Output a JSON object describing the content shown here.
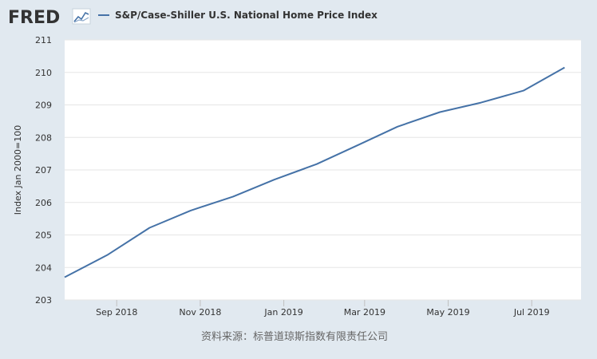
{
  "brand": {
    "name": "FRED"
  },
  "chart_data": {
    "type": "line",
    "title": "",
    "legend": {
      "position": "top-left",
      "entries": [
        "S&P/Case-Shiller U.S. National Home Price Index"
      ]
    },
    "ylabel": "Index Jan 2000=100",
    "xlabel": "",
    "ylim": [
      203,
      211
    ],
    "yticks": [
      203,
      204,
      205,
      206,
      207,
      208,
      209,
      210,
      211
    ],
    "xticks": [
      {
        "label": "Sep 2018",
        "x": "2018-09-01"
      },
      {
        "label": "Nov 2018",
        "x": "2018-11-01"
      },
      {
        "label": "Jan 2019",
        "x": "2019-01-01"
      },
      {
        "label": "Mar 2019",
        "x": "2019-03-01"
      },
      {
        "label": "May 2019",
        "x": "2019-05-01"
      },
      {
        "label": "Jul 2019",
        "x": "2019-07-01"
      }
    ],
    "xlim": [
      "2018-07-25",
      "2019-08-06"
    ],
    "grid": true,
    "colors": {
      "series": "#4572a7",
      "gridline": "#e6e6e6",
      "plot_bg": "#ffffff",
      "page_bg": "#e1e9f0"
    },
    "series": [
      {
        "name": "S&P/Case-Shiller U.S. National Home Price Index",
        "x": [
          "2018-07-25",
          "2018-08-25",
          "2018-09-25",
          "2018-10-25",
          "2018-11-25",
          "2018-12-25",
          "2019-01-25",
          "2019-02-25",
          "2019-03-25",
          "2019-04-25",
          "2019-05-25",
          "2019-06-25",
          "2019-07-25"
        ],
        "values": [
          203.7,
          204.38,
          205.22,
          205.75,
          206.18,
          206.7,
          207.18,
          207.78,
          208.33,
          208.78,
          209.07,
          209.44,
          210.15
        ]
      }
    ],
    "source": "资料来源：标普道琼斯指数有限责任公司"
  }
}
